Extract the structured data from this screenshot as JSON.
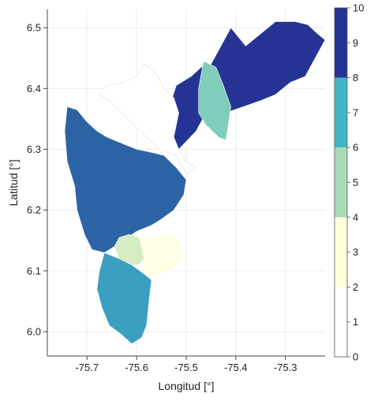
{
  "chart_data": {
    "type": "choropleth",
    "xlabel": "Longitud [°]",
    "ylabel": "Latitud [°]",
    "xlim": [
      -75.78,
      -75.22
    ],
    "ylim": [
      5.96,
      6.53
    ],
    "x_ticks": [
      {
        "value": -75.7,
        "label": "-75.7"
      },
      {
        "value": -75.6,
        "label": "-75.6"
      },
      {
        "value": -75.5,
        "label": "-75.5"
      },
      {
        "value": -75.4,
        "label": "-75.4"
      },
      {
        "value": -75.3,
        "label": "-75.3"
      }
    ],
    "y_ticks": [
      {
        "value": 6.0,
        "label": "6.0"
      },
      {
        "value": 6.1,
        "label": "6.1"
      },
      {
        "value": 6.2,
        "label": "6.2"
      },
      {
        "value": 6.3,
        "label": "6.3"
      },
      {
        "value": 6.4,
        "label": "6.4"
      },
      {
        "value": 6.5,
        "label": "6.5"
      }
    ],
    "grid": true,
    "colorbar": {
      "range": [
        0,
        10
      ],
      "ticks": [
        "0",
        "1",
        "2",
        "3",
        "4",
        "5",
        "6",
        "7",
        "8",
        "9",
        "10"
      ],
      "bins": [
        {
          "from": 2,
          "to": 4,
          "color": "#ffffd9"
        },
        {
          "from": 4,
          "to": 6,
          "color": "#a6dbb6"
        },
        {
          "from": 6,
          "to": 8,
          "color": "#41b6c4"
        },
        {
          "from": 8,
          "to": 10,
          "color": "#253494"
        }
      ]
    },
    "regions": [
      {
        "id": "northeast",
        "value": 9,
        "color": "#253494",
        "points": [
          [
            -75.41,
            6.5
          ],
          [
            -75.38,
            6.47
          ],
          [
            -75.35,
            6.49
          ],
          [
            -75.32,
            6.51
          ],
          [
            -75.28,
            6.51
          ],
          [
            -75.255,
            6.505
          ],
          [
            -75.235,
            6.49
          ],
          [
            -75.22,
            6.48
          ],
          [
            -75.24,
            6.45
          ],
          [
            -75.26,
            6.42
          ],
          [
            -75.29,
            6.41
          ],
          [
            -75.32,
            6.39
          ],
          [
            -75.35,
            6.38
          ],
          [
            -75.385,
            6.37
          ],
          [
            -75.42,
            6.36
          ],
          [
            -75.46,
            6.36
          ],
          [
            -75.48,
            6.33
          ],
          [
            -75.515,
            6.3
          ],
          [
            -75.525,
            6.32
          ],
          [
            -75.515,
            6.36
          ],
          [
            -75.53,
            6.38
          ],
          [
            -75.52,
            6.405
          ],
          [
            -75.49,
            6.42
          ],
          [
            -75.47,
            6.435
          ],
          [
            -75.45,
            6.44
          ]
        ]
      },
      {
        "id": "northeast-inner",
        "value": 5,
        "color": "#7fcdbb",
        "points": [
          [
            -75.465,
            6.445
          ],
          [
            -75.44,
            6.435
          ],
          [
            -75.425,
            6.405
          ],
          [
            -75.41,
            6.37
          ],
          [
            -75.415,
            6.34
          ],
          [
            -75.42,
            6.315
          ],
          [
            -75.435,
            6.32
          ],
          [
            -75.46,
            6.34
          ],
          [
            -75.475,
            6.36
          ],
          [
            -75.475,
            6.4
          ]
        ]
      },
      {
        "id": "north-white",
        "value": 0,
        "color": "#ffffff",
        "points": [
          [
            -75.585,
            6.44
          ],
          [
            -75.56,
            6.425
          ],
          [
            -75.545,
            6.4
          ],
          [
            -75.525,
            6.385
          ],
          [
            -75.515,
            6.36
          ],
          [
            -75.525,
            6.32
          ],
          [
            -75.515,
            6.3
          ],
          [
            -75.5,
            6.28
          ],
          [
            -75.48,
            6.27
          ],
          [
            -75.5,
            6.26
          ],
          [
            -75.52,
            6.29
          ],
          [
            -75.555,
            6.3
          ],
          [
            -75.58,
            6.32
          ],
          [
            -75.605,
            6.34
          ],
          [
            -75.63,
            6.36
          ],
          [
            -75.655,
            6.38
          ],
          [
            -75.675,
            6.39
          ],
          [
            -75.66,
            6.405
          ],
          [
            -75.625,
            6.41
          ],
          [
            -75.6,
            6.42
          ]
        ]
      },
      {
        "id": "west",
        "value": 7.5,
        "color": "#2c63a4",
        "points": [
          [
            -75.74,
            6.37
          ],
          [
            -75.72,
            6.365
          ],
          [
            -75.7,
            6.345
          ],
          [
            -75.68,
            6.33
          ],
          [
            -75.66,
            6.32
          ],
          [
            -75.63,
            6.31
          ],
          [
            -75.6,
            6.3
          ],
          [
            -75.57,
            6.295
          ],
          [
            -75.545,
            6.29
          ],
          [
            -75.52,
            6.27
          ],
          [
            -75.5,
            6.25
          ],
          [
            -75.505,
            6.225
          ],
          [
            -75.525,
            6.2
          ],
          [
            -75.55,
            6.185
          ],
          [
            -75.57,
            6.175
          ],
          [
            -75.6,
            6.165
          ],
          [
            -75.635,
            6.145
          ],
          [
            -75.665,
            6.13
          ],
          [
            -75.69,
            6.135
          ],
          [
            -75.705,
            6.16
          ],
          [
            -75.72,
            6.2
          ],
          [
            -75.725,
            6.24
          ],
          [
            -75.74,
            6.28
          ],
          [
            -75.745,
            6.33
          ]
        ]
      },
      {
        "id": "south-light-left",
        "value": 4.5,
        "color": "#d4ecc0",
        "points": [
          [
            -75.635,
            6.155
          ],
          [
            -75.615,
            6.16
          ],
          [
            -75.595,
            6.155
          ],
          [
            -75.585,
            6.14
          ],
          [
            -75.585,
            6.12
          ],
          [
            -75.595,
            6.11
          ],
          [
            -75.615,
            6.11
          ],
          [
            -75.635,
            6.12
          ],
          [
            -75.645,
            6.14
          ]
        ]
      },
      {
        "id": "south-cream",
        "value": 3,
        "color": "#ffffe5",
        "points": [
          [
            -75.595,
            6.155
          ],
          [
            -75.57,
            6.155
          ],
          [
            -75.55,
            6.16
          ],
          [
            -75.53,
            6.16
          ],
          [
            -75.51,
            6.15
          ],
          [
            -75.505,
            6.12
          ],
          [
            -75.53,
            6.1
          ],
          [
            -75.555,
            6.095
          ],
          [
            -75.57,
            6.085
          ],
          [
            -75.585,
            6.09
          ],
          [
            -75.585,
            6.12
          ],
          [
            -75.59,
            6.14
          ]
        ]
      },
      {
        "id": "south",
        "value": 7,
        "color": "#3a9fc0",
        "points": [
          [
            -75.665,
            6.13
          ],
          [
            -75.635,
            6.12
          ],
          [
            -75.61,
            6.11
          ],
          [
            -75.585,
            6.095
          ],
          [
            -75.57,
            6.085
          ],
          [
            -75.575,
            6.05
          ],
          [
            -75.58,
            6.01
          ],
          [
            -75.59,
            5.99
          ],
          [
            -75.61,
            5.98
          ],
          [
            -75.63,
            5.995
          ],
          [
            -75.655,
            6.01
          ],
          [
            -75.67,
            6.04
          ],
          [
            -75.68,
            6.07
          ],
          [
            -75.675,
            6.1
          ]
        ]
      }
    ]
  }
}
